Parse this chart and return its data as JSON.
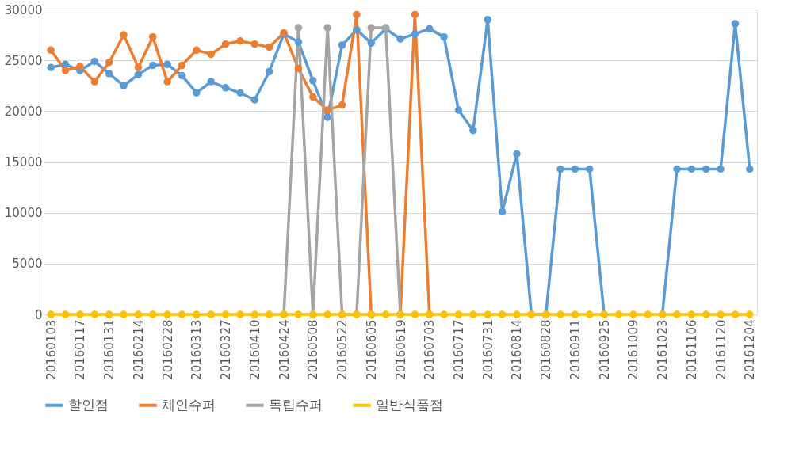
{
  "chart_data": {
    "type": "line",
    "categories": [
      "20160103",
      null,
      "20160117",
      null,
      "20160131",
      null,
      "20160214",
      null,
      "20160228",
      null,
      "20160313",
      null,
      "20160327",
      null,
      "20160410",
      null,
      "20160424",
      null,
      "20160508",
      null,
      "20160522",
      null,
      "20160605",
      null,
      "20160619",
      null,
      "20160703",
      null,
      "20160717",
      null,
      "20160731",
      null,
      "20160814",
      null,
      "20160828",
      null,
      "20160911",
      null,
      "20160925",
      null,
      "20161009",
      null,
      "20161023",
      null,
      "20161106",
      null,
      "20161120",
      null,
      "20161204"
    ],
    "series": [
      {
        "name": "할인점",
        "color": "#5b9bd5",
        "values": [
          24300,
          24600,
          24000,
          24900,
          23700,
          22500,
          23600,
          24500,
          24600,
          23500,
          21800,
          22900,
          22300,
          21800,
          21100,
          23900,
          27600,
          26800,
          23000,
          19400,
          26500,
          28000,
          26700,
          28100,
          27100,
          27600,
          28100,
          27300,
          20100,
          18100,
          29000,
          10100,
          15800,
          0,
          0,
          14300,
          14300,
          14300,
          0,
          null,
          null,
          null,
          0,
          14300,
          14300,
          14300,
          14300,
          28600,
          14300
        ]
      },
      {
        "name": "체인슈퍼",
        "color": "#ed7d31",
        "values": [
          26000,
          24000,
          24400,
          22900,
          24800,
          27500,
          24300,
          27300,
          22900,
          24500,
          26000,
          25600,
          26600,
          26900,
          26600,
          26300,
          27700,
          24200,
          21400,
          20100,
          20600,
          29500,
          0,
          null,
          0,
          29500,
          0,
          null,
          null,
          null,
          null,
          null,
          null,
          null,
          null,
          null,
          null,
          null,
          null,
          null,
          null,
          null,
          null,
          null,
          null,
          null,
          null,
          null,
          null
        ]
      },
      {
        "name": "독립슈퍼",
        "color": "#a5a5a5",
        "values": [
          null,
          null,
          null,
          null,
          null,
          null,
          null,
          null,
          null,
          null,
          null,
          null,
          null,
          null,
          null,
          null,
          0,
          28200,
          0,
          28200,
          0,
          0,
          28200,
          28200,
          0,
          null,
          null,
          null,
          null,
          null,
          null,
          null,
          null,
          null,
          null,
          null,
          null,
          null,
          null,
          null,
          null,
          null,
          null,
          null,
          null,
          null,
          null,
          null,
          null
        ]
      },
      {
        "name": "일반식품점",
        "color": "#ffc000",
        "values": [
          0,
          0,
          0,
          0,
          0,
          0,
          0,
          0,
          0,
          0,
          0,
          0,
          0,
          0,
          0,
          0,
          0,
          0,
          0,
          0,
          0,
          0,
          0,
          0,
          0,
          0,
          0,
          0,
          0,
          0,
          0,
          0,
          0,
          0,
          0,
          0,
          0,
          0,
          0,
          0,
          0,
          0,
          0,
          0,
          0,
          0,
          0,
          0,
          0
        ]
      }
    ],
    "ylim": [
      0,
      30000
    ],
    "yticks": [
      0,
      5000,
      10000,
      15000,
      20000,
      25000,
      30000
    ],
    "grid": "y",
    "legend": "bottom",
    "marker": "circle",
    "line_style": "solid"
  }
}
